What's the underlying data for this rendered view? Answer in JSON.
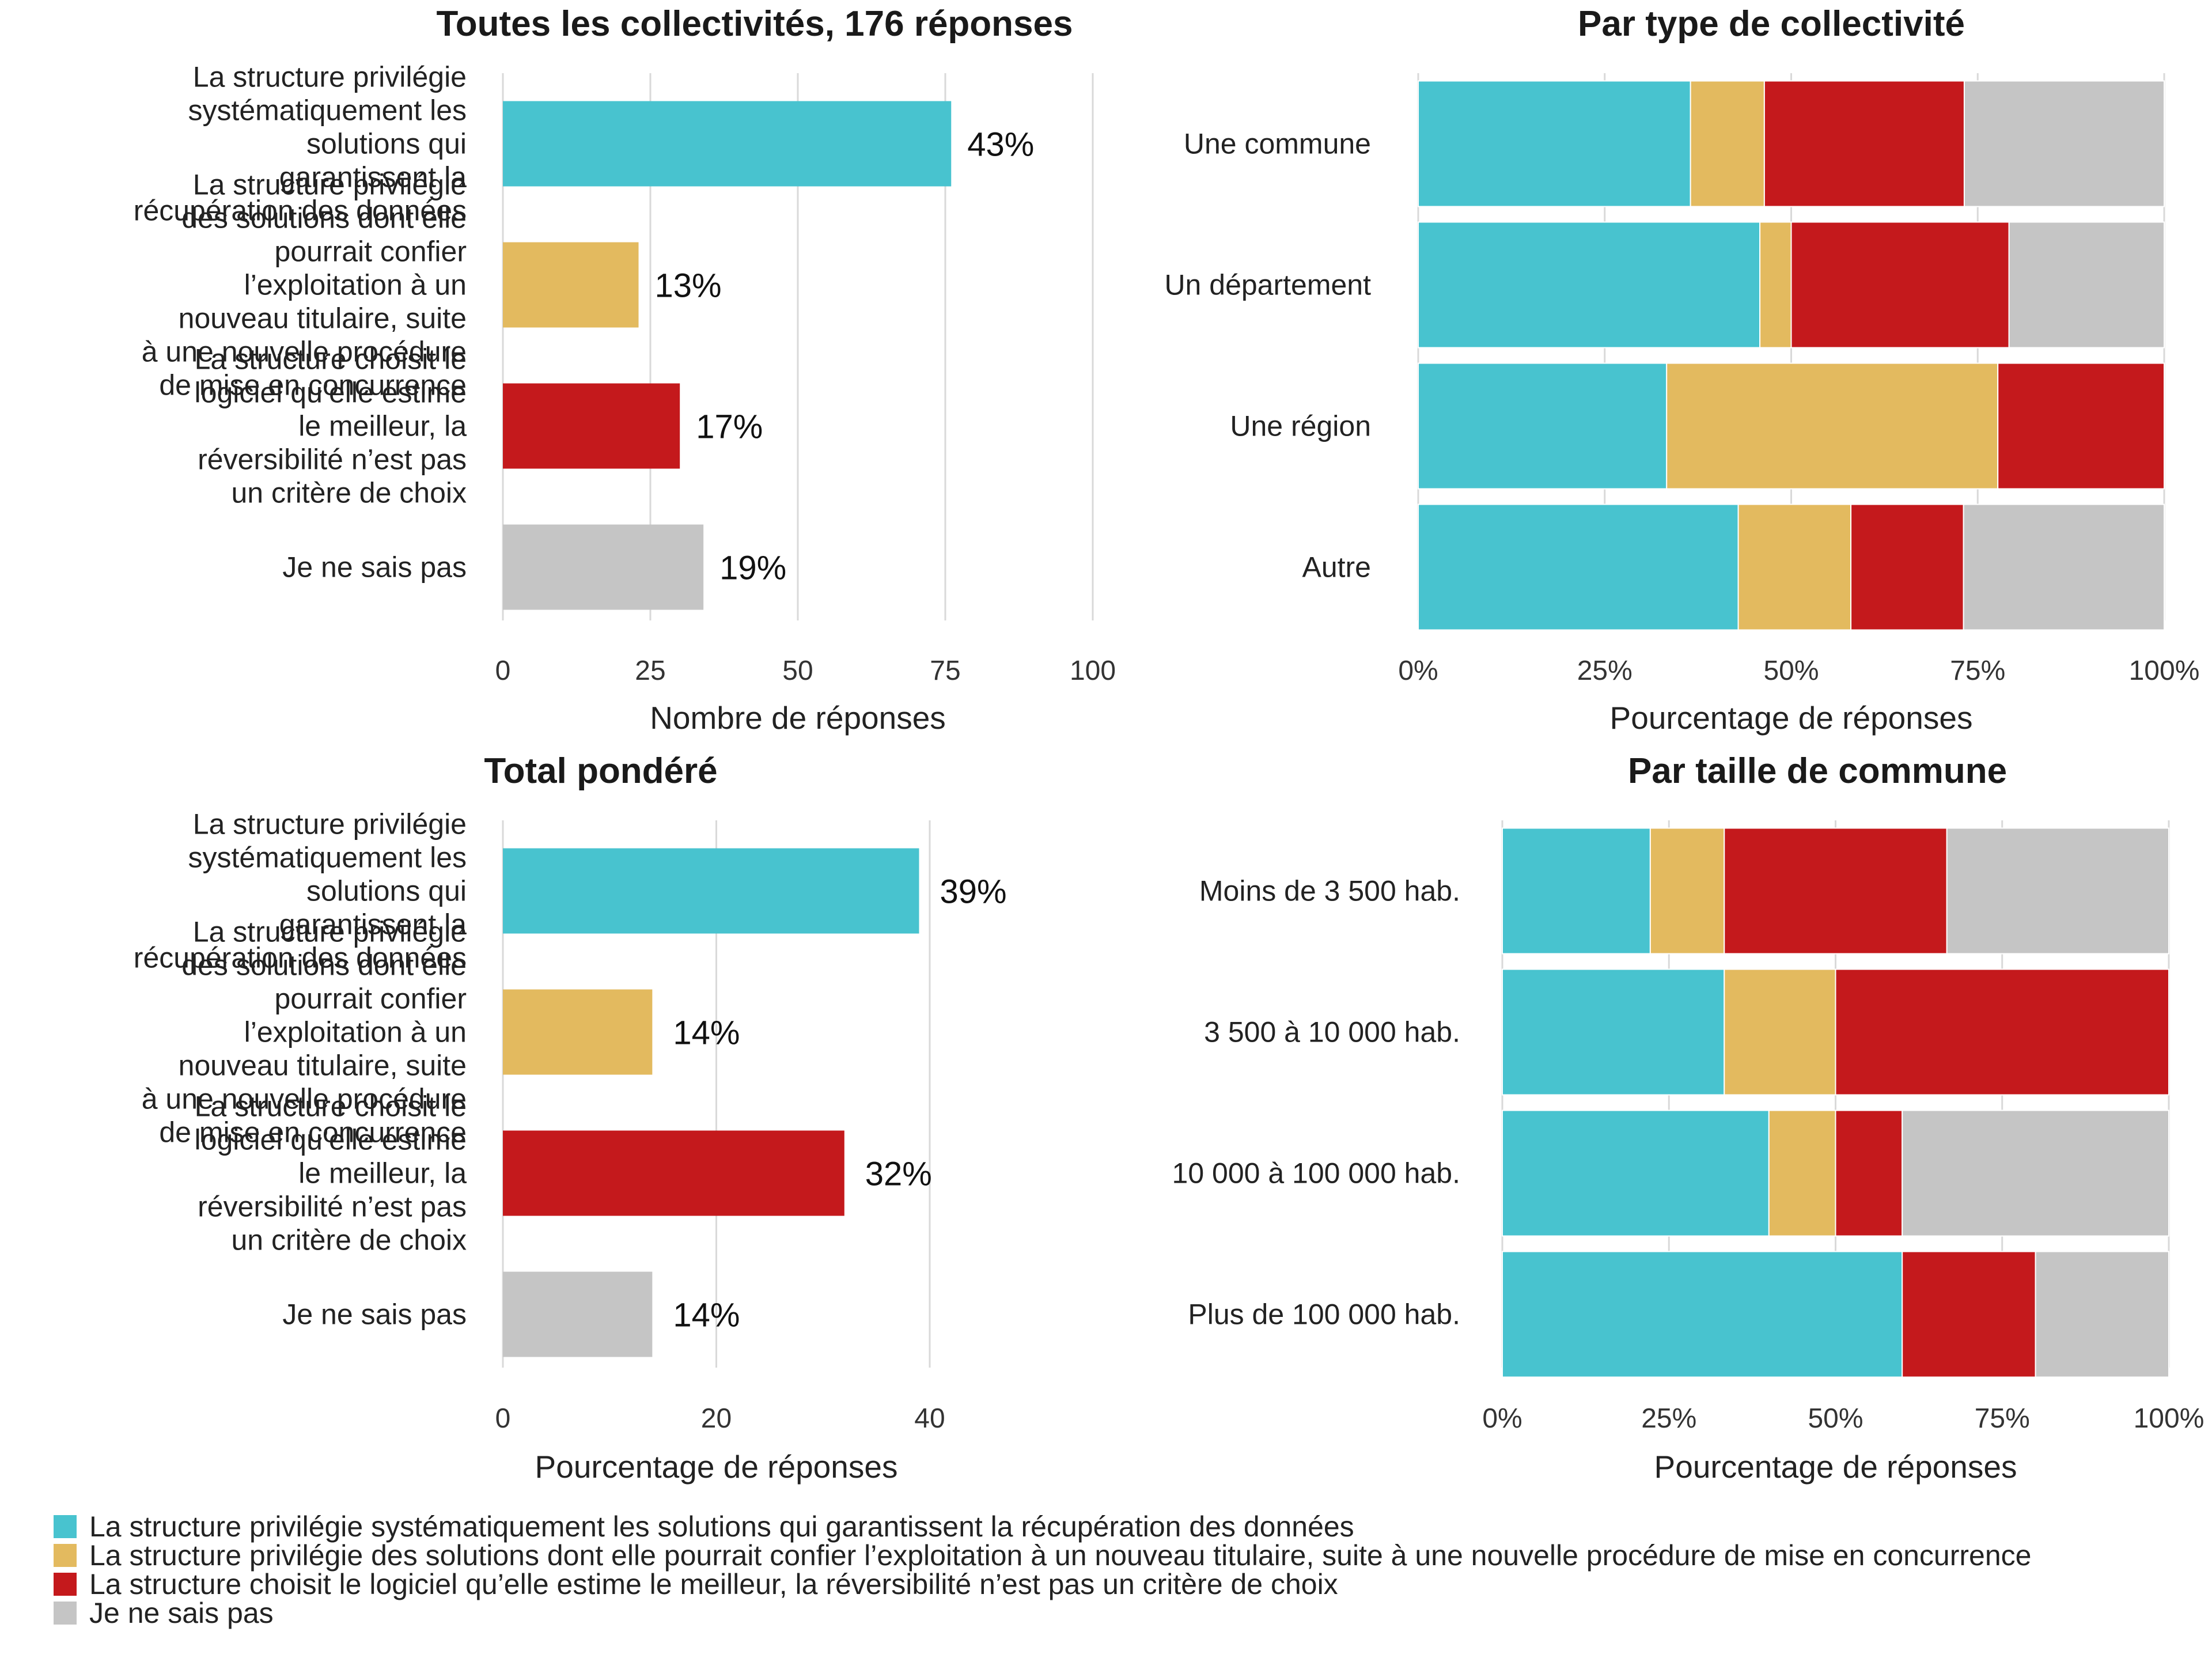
{
  "colors": {
    "recup": "#48C3CF",
    "titulaire": "#E3BA5F",
    "choix": "#C4191C",
    "nsp": "#C5C5C5"
  },
  "categories": [
    "La structure privilégie systématiquement les solutions qui garantissent la récupération des données",
    "La structure privilégie des solutions dont elle pourrait confier l’exploitation à un nouveau titulaire, suite à une nouvelle procédure de mise en concurrence",
    "La structure choisit le logiciel qu’elle estime le meilleur, la réversibilité n’est pas un critère de choix",
    "Je ne sais pas"
  ],
  "legend": [
    "La structure privilégie systématiquement les solutions qui garantissent la récupération des données",
    "La structure privilégie des solutions dont elle pourrait confier l’exploitation à un nouveau titulaire, suite à une nouvelle procédure de mise en concurrence",
    "La structure choisit le logiciel qu’elle estime le meilleur, la réversibilité n’est pas un critère de choix",
    "Je ne sais pas"
  ],
  "chart_data": [
    {
      "type": "bar",
      "title": "Toutes les collectivités, 176 réponses",
      "xlabel": "Nombre de réponses",
      "orientation": "horizontal",
      "categories": [
        "La structure privilégie systématiquement les solutions qui garantissent la récupération des données",
        "La structure privilégie des solutions dont elle pourrait confier l’exploitation à un nouveau titulaire, suite à une nouvelle procédure de mise en concurrence",
        "La structure choisit le logiciel qu’elle estime le meilleur, la réversibilité n’est pas un critère de choix",
        "Je ne sais pas"
      ],
      "values": [
        76,
        23,
        30,
        34
      ],
      "data_labels": [
        "43%",
        "13%",
        "17%",
        "19%"
      ],
      "xlim": [
        0,
        100
      ],
      "xticks": [
        "0",
        "25",
        "50",
        "75",
        "100"
      ],
      "grid": true
    },
    {
      "type": "bar",
      "stacked": true,
      "percent": true,
      "title": "Par type de collectivité",
      "xlabel": "Pourcentage de réponses",
      "orientation": "horizontal",
      "categories": [
        "Une commune",
        "Un département",
        "Une région",
        "Autre"
      ],
      "series": [
        {
          "name": "La structure privilégie systématiquement les solutions qui garantissent la récupération des données",
          "values": [
            0.365,
            0.458,
            0.333,
            0.429
          ]
        },
        {
          "name": "La structure privilégie des solutions dont elle pourrait confier l’exploitation à un nouveau titulaire, suite à une nouvelle procédure de mise en concurrence",
          "values": [
            0.099,
            0.042,
            0.444,
            0.151
          ]
        },
        {
          "name": "La structure choisit le logiciel qu’elle estime le meilleur, la réversibilité n’est pas un critère de choix",
          "values": [
            0.268,
            0.292,
            0.223,
            0.151
          ]
        },
        {
          "name": "Je ne sais pas",
          "values": [
            0.268,
            0.208,
            0.0,
            0.269
          ]
        }
      ],
      "xlim": [
        0,
        1
      ],
      "xticks": [
        "0%",
        "25%",
        "50%",
        "75%",
        "100%"
      ],
      "grid": true
    },
    {
      "type": "bar",
      "title": "Total pondéré",
      "xlabel": "Pourcentage de réponses",
      "orientation": "horizontal",
      "categories": [
        "La structure privilégie systématiquement les solutions qui garantissent la récupération des données",
        "La structure privilégie des solutions dont elle pourrait confier l’exploitation à un nouveau titulaire, suite à une nouvelle procédure de mise en concurrence",
        "La structure choisit le logiciel qu’elle estime le meilleur, la réversibilité n’est pas un critère de choix",
        "Je ne sais pas"
      ],
      "values": [
        39,
        14,
        32,
        14
      ],
      "data_labels": [
        "39%",
        "14%",
        "32%",
        "14%"
      ],
      "xlim": [
        0,
        40
      ],
      "xticks": [
        "0",
        "20",
        "40"
      ],
      "grid": true
    },
    {
      "type": "bar",
      "stacked": true,
      "percent": true,
      "title": "Par taille de commune",
      "xlabel": "Pourcentage de réponses",
      "orientation": "horizontal",
      "categories": [
        "Moins de 3 500 hab.",
        "3 500 à 10 000 hab.",
        "10 000 à 100 000 hab.",
        "Plus de 100 000 hab."
      ],
      "series": [
        {
          "name": "La structure privilégie systématiquement les solutions qui garantissent la récupération des données",
          "values": [
            0.222,
            0.333,
            0.4,
            0.6
          ]
        },
        {
          "name": "La structure privilégie des solutions dont elle pourrait confier l’exploitation à un nouveau titulaire, suite à une nouvelle procédure de mise en concurrence",
          "values": [
            0.111,
            0.167,
            0.1,
            0.0
          ]
        },
        {
          "name": "La structure choisit le logiciel qu’elle estime le meilleur, la réversibilité n’est pas un critère de choix",
          "values": [
            0.334,
            0.5,
            0.1,
            0.2
          ]
        },
        {
          "name": "Je ne sais pas",
          "values": [
            0.333,
            0.0,
            0.4,
            0.2
          ]
        }
      ],
      "xlim": [
        0,
        1
      ],
      "xticks": [
        "0%",
        "25%",
        "50%",
        "75%",
        "100%"
      ],
      "grid": true
    }
  ]
}
